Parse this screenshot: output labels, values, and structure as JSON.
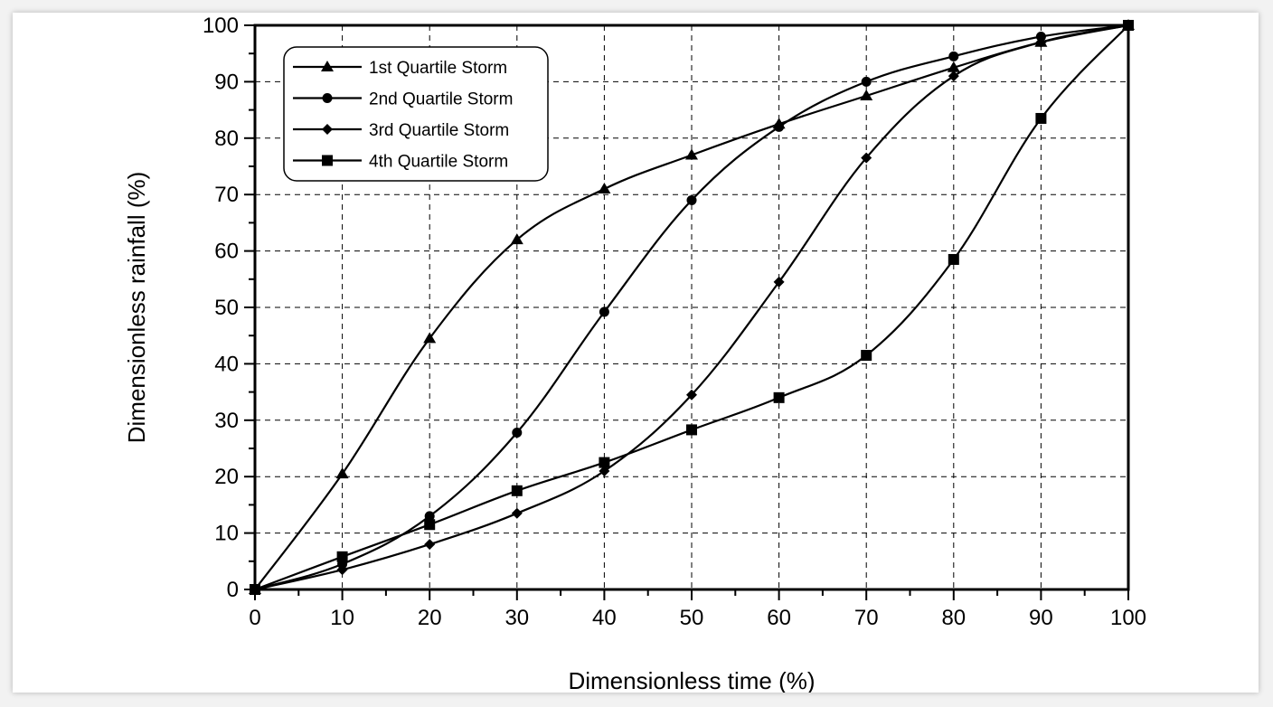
{
  "chart_data": {
    "type": "line",
    "title": "",
    "xlabel": "Dimensionless time (%)",
    "ylabel": "Dimensionless rainfall (%)",
    "xlim": [
      0,
      100
    ],
    "ylim": [
      0,
      100
    ],
    "xticks": [
      "0",
      "10",
      "20",
      "30",
      "40",
      "50",
      "60",
      "70",
      "80",
      "90",
      "100"
    ],
    "yticks": [
      "0",
      "10",
      "20",
      "30",
      "40",
      "50",
      "60",
      "70",
      "80",
      "90",
      "100"
    ],
    "grid": true,
    "legend_position": "top-left",
    "x": [
      0,
      10,
      20,
      30,
      40,
      50,
      60,
      70,
      80,
      90,
      100
    ],
    "series": [
      {
        "name": "1st  Quartile Storm",
        "marker": "triangle",
        "values": [
          0,
          20.5,
          44.5,
          62,
          71,
          77,
          82.5,
          87.5,
          92.5,
          97,
          100
        ]
      },
      {
        "name": "2nd Quartile Storm",
        "marker": "circle",
        "values": [
          0,
          4.5,
          13,
          27.8,
          49.2,
          69,
          82,
          90,
          94.5,
          98,
          100
        ]
      },
      {
        "name": "3rd  Quartile Storm",
        "marker": "diamond",
        "values": [
          0,
          3.5,
          8,
          13.5,
          21,
          34.5,
          54.5,
          76.5,
          91,
          97,
          100
        ]
      },
      {
        "name": "4th  Quartile Storm",
        "marker": "square",
        "values": [
          0,
          5.8,
          11.5,
          17.5,
          22.5,
          28.3,
          34,
          41.5,
          58.5,
          83.5,
          100
        ]
      }
    ],
    "line_color": "#000000"
  }
}
